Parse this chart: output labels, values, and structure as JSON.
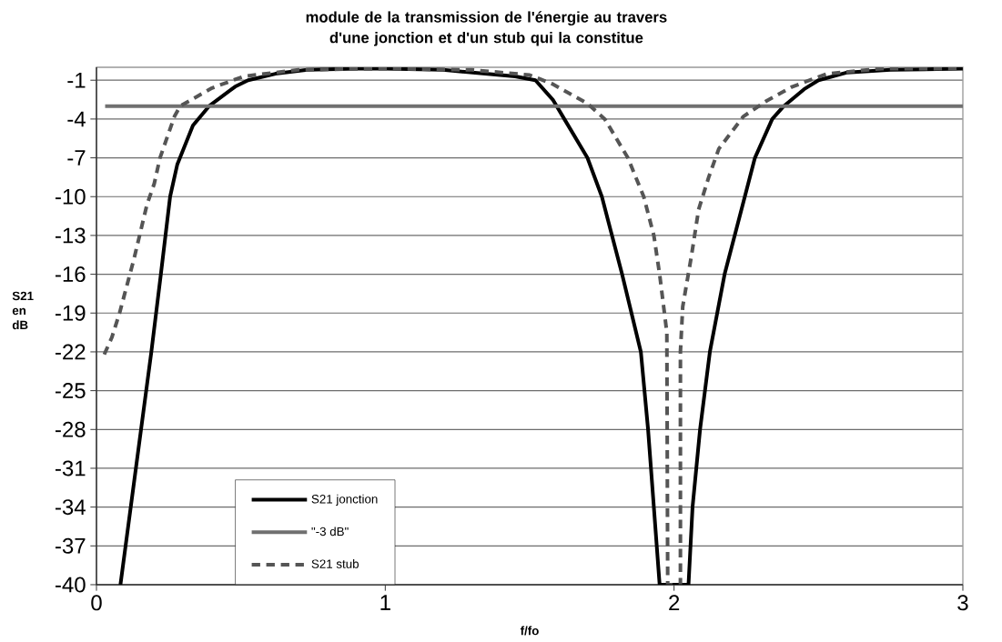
{
  "chart_data": {
    "type": "line",
    "title": "module de la transmission de l'énergie au travers d'une jonction et d'un stub qui la constitue",
    "xlabel": "f/fo",
    "ylabel": "S21 en dB",
    "xlim": [
      0,
      3
    ],
    "ylim": [
      -40,
      0
    ],
    "xticks": [
      0,
      1,
      2,
      3
    ],
    "yticks": [
      -40,
      -37,
      -34,
      -31,
      -28,
      -25,
      -22,
      -19,
      -16,
      -13,
      -10,
      -7,
      -4,
      -1
    ],
    "grid": "y",
    "legend": "bottom left",
    "marker": "none",
    "series": [
      {
        "name": "S21 jonction",
        "color": "#000000",
        "line_style": "solid",
        "x": [
          0.083,
          0.19,
          0.223,
          0.255,
          0.28,
          0.334,
          0.39,
          0.48,
          0.525,
          0.62,
          0.73,
          0.9,
          1.0,
          1.2,
          1.45,
          1.52,
          1.58,
          1.62,
          1.7,
          1.75,
          1.82,
          1.885,
          1.91,
          1.93,
          1.95,
          2.05,
          2.064,
          2.09,
          2.124,
          2.175,
          2.245,
          2.28,
          2.34,
          2.38,
          2.45,
          2.5,
          2.6,
          2.75,
          3.0
        ],
        "values": [
          -40,
          -22,
          -16,
          -10,
          -7.5,
          -4.5,
          -3,
          -1.5,
          -1,
          -0.5,
          -0.2,
          -0.1,
          -0.1,
          -0.2,
          -0.7,
          -1,
          -2.5,
          -4,
          -7,
          -10,
          -16,
          -22,
          -28,
          -34,
          -40,
          -40,
          -34,
          -28,
          -22,
          -16,
          -10,
          -7,
          -4,
          -3,
          -1.7,
          -1,
          -0.4,
          -0.2,
          -0.1
        ]
      },
      {
        "name": "\"-3 dB\"",
        "color": "#707070",
        "line_style": "solid",
        "x": [
          0.03,
          3.0
        ],
        "values": [
          -3,
          -3
        ]
      },
      {
        "name": "S21 stub",
        "color": "#555555",
        "line_style": "dashed",
        "x": [
          0.027,
          0.053,
          0.08,
          0.13,
          0.175,
          0.2,
          0.22,
          0.27,
          0.29,
          0.4,
          0.51,
          0.7,
          1.0,
          1.3,
          1.5,
          1.58,
          1.7,
          1.76,
          1.84,
          1.895,
          1.93,
          1.95,
          1.975,
          1.978,
          2.022,
          2.022,
          2.03,
          2.06,
          2.085,
          2.12,
          2.155,
          2.24,
          2.32,
          2.41,
          2.53,
          2.72,
          3.0
        ],
        "values": [
          -22.2,
          -20.9,
          -19,
          -14.8,
          -10.6,
          -9,
          -7,
          -3.8,
          -3,
          -1.6,
          -0.7,
          -0.2,
          -0.1,
          -0.2,
          -0.6,
          -1.3,
          -2.8,
          -4,
          -7,
          -10,
          -13,
          -16,
          -20.5,
          -40,
          -40,
          -22,
          -18.5,
          -14.6,
          -11,
          -8.5,
          -6.3,
          -3.8,
          -2.6,
          -1.5,
          -0.5,
          -0.1,
          -0.1
        ]
      }
    ]
  }
}
